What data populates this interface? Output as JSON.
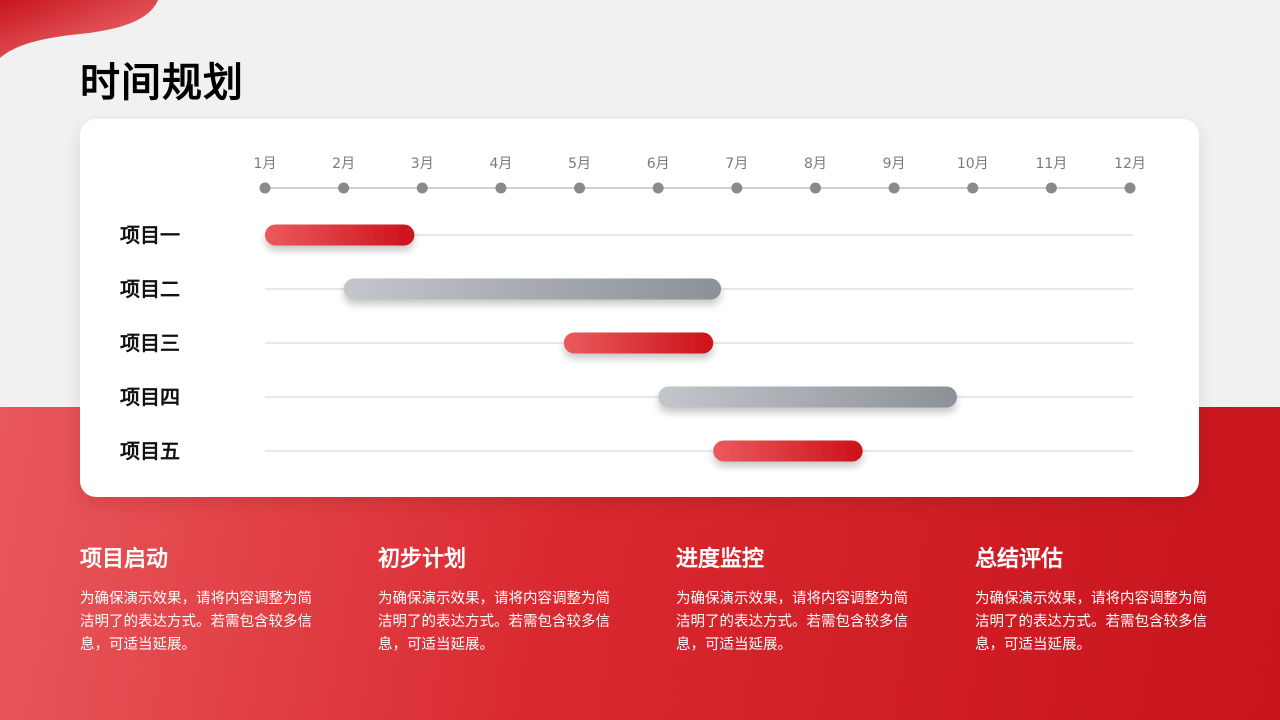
{
  "page": {
    "title": "时间规划"
  },
  "colors": {
    "accent_red": "#d7161f",
    "accent_gray": "#8e9399",
    "background": "#f1f1f2"
  },
  "chart_data": {
    "type": "gantt",
    "months": [
      "1月",
      "2月",
      "3月",
      "4月",
      "5月",
      "6月",
      "7月",
      "8月",
      "9月",
      "10月",
      "11月",
      "12月"
    ],
    "series": [
      {
        "name": "项目一",
        "start": 1.0,
        "end": 2.9,
        "color": "red"
      },
      {
        "name": "项目二",
        "start": 2.0,
        "end": 6.8,
        "color": "gray"
      },
      {
        "name": "项目三",
        "start": 4.8,
        "end": 6.7,
        "color": "red"
      },
      {
        "name": "项目四",
        "start": 6.0,
        "end": 9.8,
        "color": "gray"
      },
      {
        "name": "项目五",
        "start": 6.7,
        "end": 8.6,
        "color": "red"
      }
    ]
  },
  "phases": [
    {
      "title": "项目启动",
      "desc": "为确保演示效果，请将内容调整为简洁明了的表达方式。若需包含较多信息，可适当延展。"
    },
    {
      "title": "初步计划",
      "desc": "为确保演示效果，请将内容调整为简洁明了的表达方式。若需包含较多信息，可适当延展。"
    },
    {
      "title": "进度监控",
      "desc": "为确保演示效果，请将内容调整为简洁明了的表达方式。若需包含较多信息，可适当延展。"
    },
    {
      "title": "总结评估",
      "desc": "为确保演示效果，请将内容调整为简洁明了的表达方式。若需包含较多信息，可适当延展。"
    }
  ]
}
